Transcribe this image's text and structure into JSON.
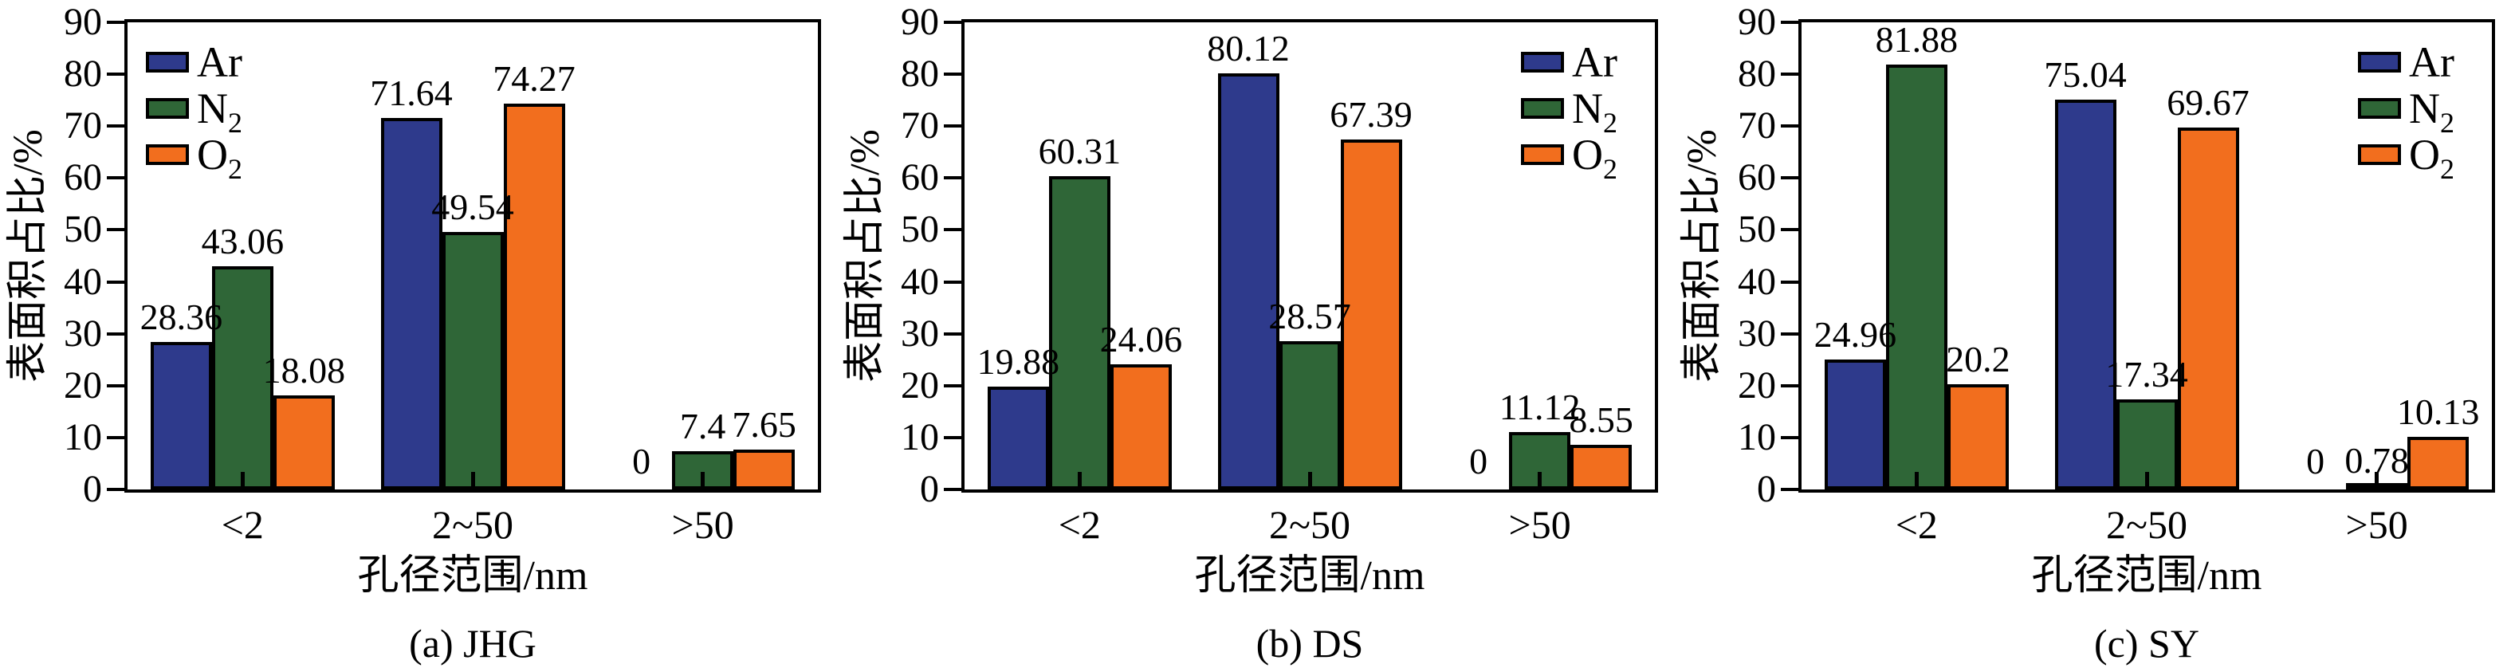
{
  "figure": {
    "description": "Three grouped bar charts of surface-area proportion by pore-size range measured with Ar, N2 and O2",
    "background": "#ffffff",
    "text_color": "#000000",
    "axis_color": "#000000"
  },
  "style": {
    "series_colors": {
      "Ar": "#2E3A8C",
      "N2": "#2F6637",
      "O2": "#F26E1E"
    },
    "bar_border_color": "#000000"
  },
  "chart_data": [
    {
      "type": "bar",
      "caption": "(a) JHG",
      "xlabel": "孔径范围/nm",
      "ylabel": "表面积占比/%",
      "ylim": [
        0,
        90
      ],
      "yticks": [
        0,
        10,
        20,
        30,
        40,
        50,
        60,
        70,
        80,
        90
      ],
      "grid": "off",
      "legend_position": "upper-left",
      "categories": [
        "<2",
        "2~50",
        ">50"
      ],
      "series": [
        {
          "name": "Ar",
          "legend": {
            "base": "Ar",
            "sub": ""
          },
          "color": "#2E3A8C",
          "values": [
            28.36,
            71.64,
            0
          ]
        },
        {
          "name": "N2",
          "legend": {
            "base": "N",
            "sub": "2"
          },
          "color": "#2F6637",
          "values": [
            43.06,
            49.54,
            7.4
          ]
        },
        {
          "name": "O2",
          "legend": {
            "base": "O",
            "sub": "2"
          },
          "color": "#F26E1E",
          "values": [
            18.08,
            74.27,
            7.65
          ]
        }
      ]
    },
    {
      "type": "bar",
      "caption": "(b) DS",
      "xlabel": "孔径范围/nm",
      "ylabel": "表面积占比/%",
      "ylim": [
        0,
        90
      ],
      "yticks": [
        0,
        10,
        20,
        30,
        40,
        50,
        60,
        70,
        80,
        90
      ],
      "grid": "off",
      "legend_position": "upper-right",
      "categories": [
        "<2",
        "2~50",
        ">50"
      ],
      "series": [
        {
          "name": "Ar",
          "legend": {
            "base": "Ar",
            "sub": ""
          },
          "color": "#2E3A8C",
          "values": [
            19.88,
            80.12,
            0
          ]
        },
        {
          "name": "N2",
          "legend": {
            "base": "N",
            "sub": "2"
          },
          "color": "#2F6637",
          "values": [
            60.31,
            28.57,
            11.12
          ]
        },
        {
          "name": "O2",
          "legend": {
            "base": "O",
            "sub": "2"
          },
          "color": "#F26E1E",
          "values": [
            24.06,
            67.39,
            8.55
          ]
        }
      ]
    },
    {
      "type": "bar",
      "caption": "(c) SY",
      "xlabel": "孔径范围/nm",
      "ylabel": "表面积占比/%",
      "ylim": [
        0,
        90
      ],
      "yticks": [
        0,
        10,
        20,
        30,
        40,
        50,
        60,
        70,
        80,
        90
      ],
      "grid": "off",
      "legend_position": "upper-right",
      "categories": [
        "<2",
        "2~50",
        ">50"
      ],
      "series": [
        {
          "name": "Ar",
          "legend": {
            "base": "Ar",
            "sub": ""
          },
          "color": "#2E3A8C",
          "values": [
            24.96,
            75.04,
            0
          ]
        },
        {
          "name": "N2",
          "legend": {
            "base": "N",
            "sub": "2"
          },
          "color": "#2F6637",
          "values": [
            81.88,
            17.34,
            0.78
          ]
        },
        {
          "name": "O2",
          "legend": {
            "base": "O",
            "sub": "2"
          },
          "color": "#F26E1E",
          "values": [
            20.2,
            69.67,
            10.13
          ]
        }
      ]
    }
  ]
}
